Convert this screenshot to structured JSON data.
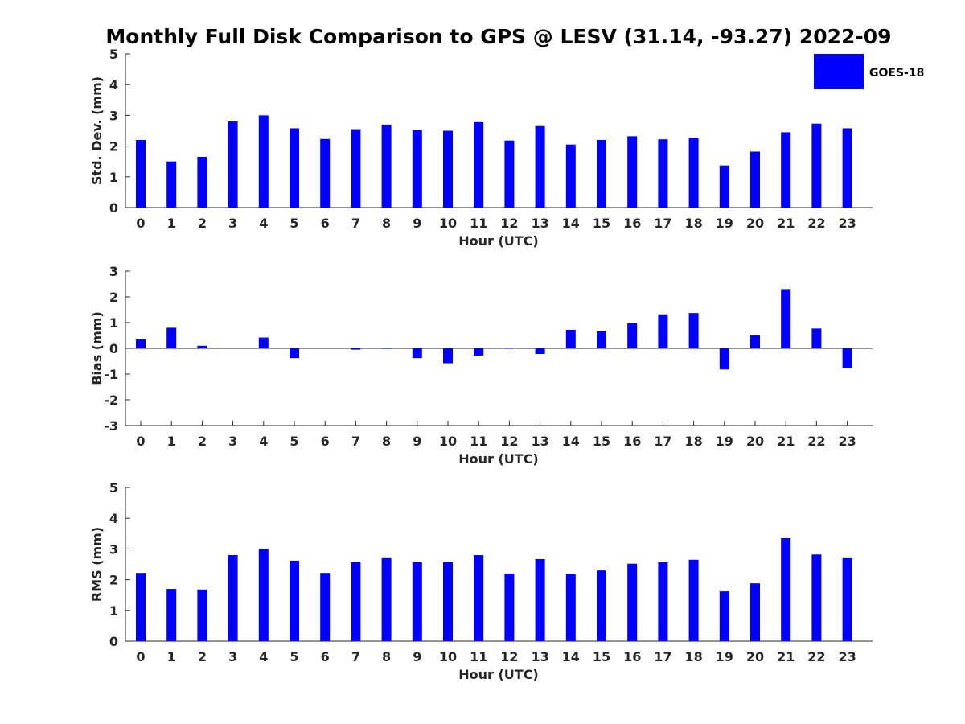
{
  "figure": {
    "title": "Monthly Full Disk Comparison to GPS @ LESV (31.14, -93.27) 2022-09",
    "legend": {
      "label": "GOES-18",
      "color": "#0000ff",
      "placement": "top-right"
    }
  },
  "chart_data": [
    {
      "type": "bar",
      "series_name": "GOES-18",
      "xlabel": "Hour (UTC)",
      "ylabel": "Std. Dev. (mm)",
      "ylim": [
        0,
        5
      ],
      "yticks": [
        0,
        1,
        2,
        3,
        4,
        5
      ],
      "categories": [
        "0",
        "1",
        "2",
        "3",
        "4",
        "5",
        "6",
        "7",
        "8",
        "9",
        "10",
        "11",
        "12",
        "13",
        "14",
        "15",
        "16",
        "17",
        "18",
        "19",
        "20",
        "21",
        "22",
        "23"
      ],
      "values": [
        2.2,
        1.5,
        1.65,
        2.8,
        3.0,
        2.58,
        2.23,
        2.55,
        2.7,
        2.52,
        2.5,
        2.78,
        2.18,
        2.65,
        2.05,
        2.2,
        2.32,
        2.22,
        2.27,
        1.37,
        1.82,
        2.45,
        2.73,
        2.58
      ]
    },
    {
      "type": "bar",
      "series_name": "GOES-18",
      "xlabel": "Hour (UTC)",
      "ylabel": "Bias (mm)",
      "ylim": [
        -3,
        3
      ],
      "yticks": [
        -3,
        -2,
        -1,
        0,
        1,
        2,
        3
      ],
      "categories": [
        "0",
        "1",
        "2",
        "3",
        "4",
        "5",
        "6",
        "7",
        "8",
        "9",
        "10",
        "11",
        "12",
        "13",
        "14",
        "15",
        "16",
        "17",
        "18",
        "19",
        "20",
        "21",
        "22",
        "23"
      ],
      "values": [
        0.35,
        0.8,
        0.1,
        0.0,
        0.42,
        -0.38,
        0.0,
        -0.05,
        -0.02,
        -0.38,
        -0.58,
        -0.28,
        0.03,
        -0.22,
        0.72,
        0.67,
        0.98,
        1.32,
        1.37,
        -0.82,
        0.52,
        2.3,
        0.77,
        -0.77
      ]
    },
    {
      "type": "bar",
      "series_name": "GOES-18",
      "xlabel": "Hour (UTC)",
      "ylabel": "RMS (mm)",
      "ylim": [
        0,
        5
      ],
      "yticks": [
        0,
        1,
        2,
        3,
        4,
        5
      ],
      "categories": [
        "0",
        "1",
        "2",
        "3",
        "4",
        "5",
        "6",
        "7",
        "8",
        "9",
        "10",
        "11",
        "12",
        "13",
        "14",
        "15",
        "16",
        "17",
        "18",
        "19",
        "20",
        "21",
        "22",
        "23"
      ],
      "values": [
        2.22,
        1.7,
        1.68,
        2.8,
        3.0,
        2.62,
        2.22,
        2.57,
        2.7,
        2.57,
        2.57,
        2.8,
        2.2,
        2.67,
        2.18,
        2.3,
        2.52,
        2.57,
        2.65,
        1.62,
        1.88,
        3.35,
        2.82,
        2.7
      ]
    }
  ]
}
